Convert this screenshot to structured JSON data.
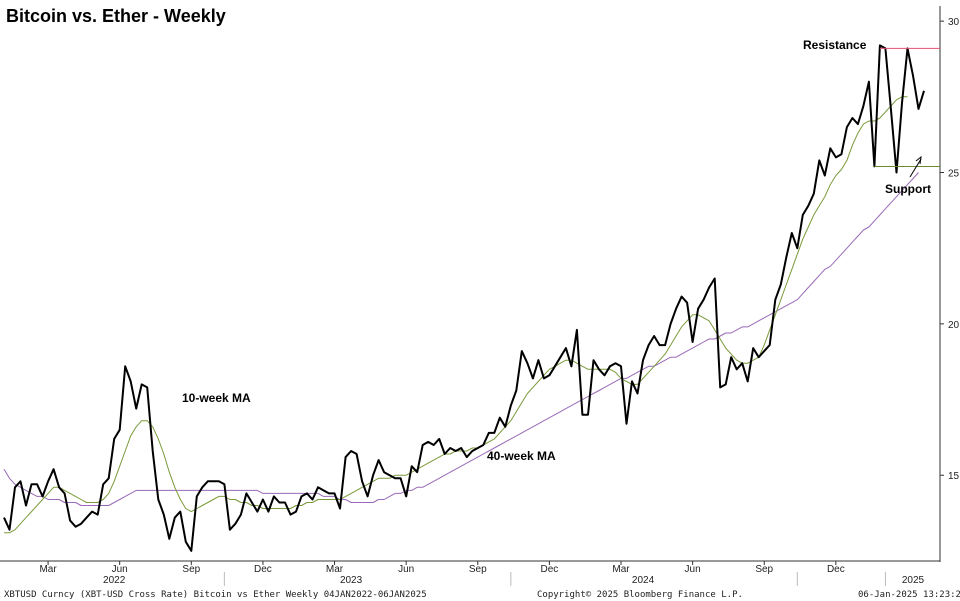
{
  "chart_data": {
    "type": "line",
    "title": "Bitcoin vs. Ether - Weekly",
    "y_ticks": [
      15,
      20,
      25,
      30
    ],
    "ylim": [
      12.2,
      30.5
    ],
    "x_month_ticks": [
      "Mar",
      "Jun",
      "Sep",
      "Dec",
      "Mar",
      "Jun",
      "Sep",
      "Dec",
      "Mar",
      "Jun",
      "Sep",
      "Dec"
    ],
    "x_year_labels": [
      "2022",
      "2023",
      "2024",
      "2025"
    ],
    "annotations": {
      "ma10": "10-week MA",
      "ma40": "40-week MA",
      "resistance": "Resistance",
      "support": "Support"
    },
    "resistance_level": 29.1,
    "support_level": 25.2,
    "footer": {
      "left": "XBTUSD Curncy (XBT-USD Cross Rate) Bitcoin vs Ether  Weekly 04JAN2022-06JAN2025",
      "center": "Copyright© 2025 Bloomberg Finance L.P.",
      "right": "06-Jan-2025 13:23:28"
    },
    "colors": {
      "price": "#000000",
      "ma10": "#7a9a3a",
      "ma40": "#9a6ab8",
      "resistance": "#e0506e",
      "support": "#6a8a2a"
    },
    "series": [
      {
        "name": "Bitcoin vs Ether",
        "values": [
          13.6,
          13.2,
          14.6,
          14.8,
          14.0,
          14.7,
          14.7,
          14.3,
          14.8,
          15.2,
          14.6,
          14.4,
          13.5,
          13.3,
          13.4,
          13.6,
          13.8,
          13.7,
          14.7,
          14.9,
          16.2,
          16.5,
          18.6,
          18.1,
          17.2,
          18.0,
          17.9,
          15.8,
          14.2,
          13.7,
          12.9,
          13.6,
          13.8,
          12.8,
          12.5,
          14.3,
          14.6,
          14.8,
          14.8,
          14.8,
          14.7,
          13.2,
          13.4,
          13.7,
          14.4,
          14.1,
          13.8,
          14.2,
          13.8,
          14.3,
          14.1,
          14.1,
          13.7,
          13.8,
          14.3,
          14.4,
          14.2,
          14.6,
          14.5,
          14.4,
          14.4,
          13.9,
          15.6,
          15.8,
          15.7,
          14.8,
          14.3,
          15.0,
          15.5,
          15.1,
          15.0,
          14.9,
          14.9,
          14.3,
          15.3,
          15.1,
          16.0,
          16.1,
          16.0,
          16.2,
          15.7,
          15.9,
          15.8,
          15.9,
          15.6,
          15.8,
          15.9,
          16.0,
          16.4,
          16.4,
          16.9,
          16.6,
          17.3,
          17.8,
          19.1,
          18.7,
          18.2,
          18.8,
          18.2,
          18.3,
          18.6,
          18.9,
          19.2,
          18.6,
          19.8,
          17.0,
          17.0,
          18.8,
          18.5,
          18.3,
          18.6,
          18.7,
          18.6,
          16.7,
          18.1,
          17.7,
          18.8,
          19.3,
          19.6,
          19.3,
          19.3,
          20.0,
          20.5,
          20.9,
          20.7,
          19.4,
          20.5,
          20.8,
          21.2,
          21.5,
          17.9,
          18.0,
          18.9,
          18.5,
          18.7,
          18.1,
          19.2,
          18.9,
          19.1,
          19.3,
          20.8,
          21.3,
          22.2,
          23.0,
          22.5,
          23.6,
          23.9,
          24.3,
          25.4,
          24.9,
          25.8,
          25.5,
          25.6,
          26.5,
          26.8,
          26.6,
          27.2,
          28.0,
          25.2,
          29.2,
          29.1,
          27.1,
          25.0,
          27.3,
          29.1,
          28.2,
          27.1,
          27.7
        ]
      },
      {
        "name": "10-week MA",
        "values": [
          13.1,
          13.1,
          13.2,
          13.4,
          13.6,
          13.8,
          14.0,
          14.2,
          14.4,
          14.6,
          14.6,
          14.5,
          14.4,
          14.3,
          14.2,
          14.1,
          14.1,
          14.1,
          14.2,
          14.4,
          14.8,
          15.3,
          15.8,
          16.3,
          16.6,
          16.8,
          16.8,
          16.6,
          16.2,
          15.7,
          15.1,
          14.6,
          14.2,
          13.9,
          13.8,
          13.9,
          14.0,
          14.1,
          14.2,
          14.3,
          14.3,
          14.2,
          14.2,
          14.1,
          14.1,
          14.0,
          14.0,
          13.9,
          13.9,
          13.9,
          13.9,
          13.9,
          13.9,
          14.0,
          14.0,
          14.1,
          14.1,
          14.2,
          14.2,
          14.2,
          14.2,
          14.2,
          14.3,
          14.4,
          14.5,
          14.6,
          14.7,
          14.8,
          14.9,
          14.9,
          14.9,
          15.0,
          15.0,
          15.0,
          15.1,
          15.2,
          15.3,
          15.4,
          15.5,
          15.6,
          15.7,
          15.7,
          15.8,
          15.8,
          15.8,
          15.9,
          15.9,
          16.0,
          16.1,
          16.2,
          16.4,
          16.6,
          16.8,
          17.1,
          17.4,
          17.7,
          17.9,
          18.1,
          18.3,
          18.5,
          18.6,
          18.7,
          18.8,
          18.8,
          18.7,
          18.6,
          18.5,
          18.5,
          18.5,
          18.5,
          18.5,
          18.4,
          18.2,
          18.1,
          18.0,
          18.0,
          18.2,
          18.4,
          18.6,
          18.8,
          19.0,
          19.3,
          19.6,
          19.9,
          20.1,
          20.3,
          20.3,
          20.2,
          20.1,
          19.8,
          19.5,
          19.2,
          19.0,
          18.8,
          18.7,
          18.7,
          18.8,
          18.9,
          19.3,
          19.8,
          20.3,
          20.8,
          21.3,
          21.8,
          22.3,
          22.8,
          23.2,
          23.6,
          23.9,
          24.2,
          24.6,
          24.9,
          25.1,
          25.4,
          25.9,
          26.3,
          26.6,
          26.7,
          26.7,
          26.8,
          27.0,
          27.2,
          27.4,
          27.5,
          27.5
        ]
      },
      {
        "name": "40-week MA",
        "values": [
          15.2,
          14.9,
          14.7,
          14.6,
          14.5,
          14.4,
          14.3,
          14.3,
          14.2,
          14.2,
          14.2,
          14.1,
          14.1,
          14.1,
          14.0,
          14.0,
          14.0,
          14.0,
          14.0,
          14.0,
          14.1,
          14.2,
          14.3,
          14.4,
          14.5,
          14.5,
          14.5,
          14.5,
          14.5,
          14.5,
          14.5,
          14.5,
          14.5,
          14.5,
          14.5,
          14.5,
          14.5,
          14.5,
          14.5,
          14.5,
          14.5,
          14.5,
          14.5,
          14.5,
          14.5,
          14.5,
          14.5,
          14.4,
          14.4,
          14.4,
          14.4,
          14.4,
          14.4,
          14.4,
          14.4,
          14.4,
          14.4,
          14.4,
          14.3,
          14.3,
          14.3,
          14.2,
          14.2,
          14.1,
          14.1,
          14.1,
          14.1,
          14.1,
          14.2,
          14.2,
          14.3,
          14.4,
          14.4,
          14.5,
          14.5,
          14.6,
          14.6,
          14.7,
          14.8,
          14.9,
          15.0,
          15.1,
          15.2,
          15.3,
          15.4,
          15.5,
          15.6,
          15.7,
          15.8,
          15.9,
          16.0,
          16.1,
          16.2,
          16.3,
          16.4,
          16.5,
          16.6,
          16.7,
          16.8,
          16.9,
          17.0,
          17.1,
          17.2,
          17.3,
          17.4,
          17.5,
          17.6,
          17.7,
          17.8,
          17.9,
          18.0,
          18.1,
          18.2,
          18.2,
          18.3,
          18.4,
          18.5,
          18.6,
          18.6,
          18.7,
          18.8,
          18.9,
          18.9,
          19.0,
          19.1,
          19.2,
          19.3,
          19.4,
          19.5,
          19.5,
          19.6,
          19.7,
          19.7,
          19.8,
          19.9,
          19.9,
          20.0,
          20.1,
          20.2,
          20.3,
          20.4,
          20.5,
          20.6,
          20.7,
          20.8,
          21.0,
          21.2,
          21.4,
          21.6,
          21.8,
          21.9,
          22.1,
          22.3,
          22.5,
          22.7,
          22.9,
          23.1,
          23.2,
          23.4,
          23.6,
          23.8,
          24.0,
          24.2,
          24.4,
          24.6,
          24.8,
          25.0
        ]
      }
    ]
  }
}
